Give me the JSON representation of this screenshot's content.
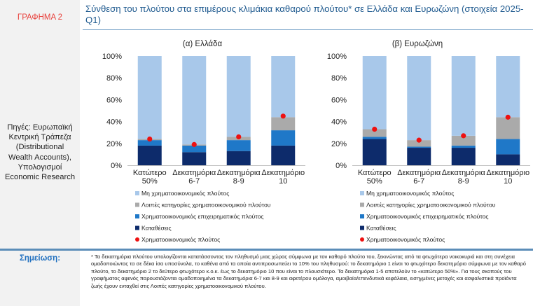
{
  "header": {
    "figure_label": "ΓΡΑΦΗΜΑ 2",
    "title": "Σύνθεση του πλούτου στα επιμέρους κλιμάκια καθαρού πλούτου* σε Ελλάδα και Ευρωζώνη (στοιχεία 2025-Q1)"
  },
  "sources": "Πηγές: Ευρωπαϊκή Κεντρική Τράπεζα (Distributional Wealth Accounts), Υπολογισμοί Economic Research",
  "note": {
    "label": "Σημείωση:",
    "text": "* Τα δεκατημόρια πλούτου υπολογίζονται κατατάσσοντας τον πληθυσμό μιας χώρας σύμφωνα με τον καθαρό πλούτο του, ξεκινώντας από τα φτωχότερα νοικοκυριά και στη συνέχεια ομαδοποιώντας τα σε δέκα ίσα υποσύνολα, το καθένα από τα οποία αντιπροσωπεύει το 10% του πληθυσμού: το δεκατημόριο 1 είναι το φτωχότερο δεκατημόριο σύμφωνα με τον καθαρό πλούτο, το δεκατημόριο 2 το δεύτερο φτωχότερο κ.ο.κ. έως το δεκατημόριο 10 που είναι το πλουσιότερο. Τα δεκατημόρια 1-5 αποτελούν το «κατώτερο 50%». Για τους σκοπούς του γραφήματος αφενός παρουσιάζονται ομαδοποιημένα τα δεκατημόρια 6-7 και 8-9 και αφετέρου ομόλογα, αμοιβαία/επενδυτικά κεφάλαια, εισηγμένες μετοχές και ασφαλιστικά προϊόντα ζωής έχουν ενταχθεί στις Λοιπές κατηγορίες χρηματοοικονομικού πλούτου."
  },
  "colors": {
    "non_financial": "#a8c8ea",
    "other_financial": "#aaaaaa",
    "business": "#1f78c8",
    "deposits": "#0d2b6b",
    "financial_marker": "#ee1111"
  },
  "chart_data": [
    {
      "type": "bar",
      "stacked": true,
      "title": "(α) Ελλάδα",
      "categories": [
        "Κατώτερο 50%",
        "Δεκατημόρια 6-7",
        "Δεκατημόρια 8-9",
        "Δεκατημόριο 10"
      ],
      "yticks": [
        "0%",
        "20%",
        "40%",
        "60%",
        "80%",
        "100%"
      ],
      "ylim": [
        0,
        100
      ],
      "series": [
        {
          "name": "Καταθέσεις",
          "key": "deposits",
          "values": [
            18,
            12,
            13,
            18
          ]
        },
        {
          "name": "Χρηματοοικονομικός επιχειρηματικός πλούτος",
          "key": "business",
          "values": [
            5,
            6,
            10,
            14
          ]
        },
        {
          "name": "Λοιπές κατηγορίες χρηματοοικονομικού πλούτου",
          "key": "other_financial",
          "values": [
            1,
            1,
            3,
            12
          ]
        },
        {
          "name": "Μη χρηματοοικονομικός πλούτος",
          "key": "non_financial",
          "values": [
            76,
            81,
            74,
            56
          ]
        }
      ],
      "marker": {
        "name": "Χρηματοοικονομικός πλούτος",
        "values": [
          24,
          19,
          26,
          45
        ]
      },
      "legend": [
        {
          "label": "Μη χρηματοοικονομικός πλούτος",
          "key": "non_financial",
          "shape": "square"
        },
        {
          "label": "Λοιπές κατηγορίες χρηματοοικονομικού πλούτου",
          "key": "other_financial",
          "shape": "square"
        },
        {
          "label": "Χρηματοοικονομικός επιχειρηματικός πλούτος",
          "key": "business",
          "shape": "square"
        },
        {
          "label": "Καταθέσεις",
          "key": "deposits",
          "shape": "square"
        },
        {
          "label": "Χρηματοοικονομικός πλούτος",
          "key": "financial_marker",
          "shape": "dot"
        }
      ]
    },
    {
      "type": "bar",
      "stacked": true,
      "title": "(β) Ευρωζώνη",
      "categories": [
        "Κατώτερο 50%",
        "Δεκατημόρια 6-7",
        "Δεκατημόρια 8-9",
        "Δεκατημόριο 10"
      ],
      "yticks": [
        "0%",
        "20%",
        "40%",
        "60%",
        "80%",
        "100%"
      ],
      "ylim": [
        0,
        100
      ],
      "series": [
        {
          "name": "Καταθέσεις",
          "key": "deposits",
          "values": [
            24,
            16,
            16,
            10
          ]
        },
        {
          "name": "Χρηματοοικονομικός επιχειρηματικός πλούτος",
          "key": "business",
          "values": [
            2,
            1,
            2,
            14
          ]
        },
        {
          "name": "Λοιπές κατηγορίες χρηματοοικονομικού πλούτου",
          "key": "other_financial",
          "values": [
            7,
            6,
            9,
            20
          ]
        },
        {
          "name": "Μη χρηματοοικονομικός πλούτος",
          "key": "non_financial",
          "values": [
            67,
            77,
            73,
            56
          ]
        }
      ],
      "marker": {
        "name": "Χρηματοοικονομικός πλούτος",
        "values": [
          33,
          23,
          27,
          44
        ]
      },
      "legend": [
        {
          "label": "Μη χρηματοοικονομικός πλούτος",
          "key": "non_financial",
          "shape": "square"
        },
        {
          "label": "Λοιπές κατηγορίες χρηματοοικονομικού πλούτου",
          "key": "other_financial",
          "shape": "square"
        },
        {
          "label": "Χρηματοοικονομικός επιχειρηματικός πλούτος",
          "key": "business",
          "shape": "square"
        },
        {
          "label": "Καταθέσεις",
          "key": "deposits",
          "shape": "square"
        },
        {
          "label": "Χρηματοοικονομικός πλούτος",
          "key": "financial_marker",
          "shape": "dot"
        }
      ]
    }
  ]
}
